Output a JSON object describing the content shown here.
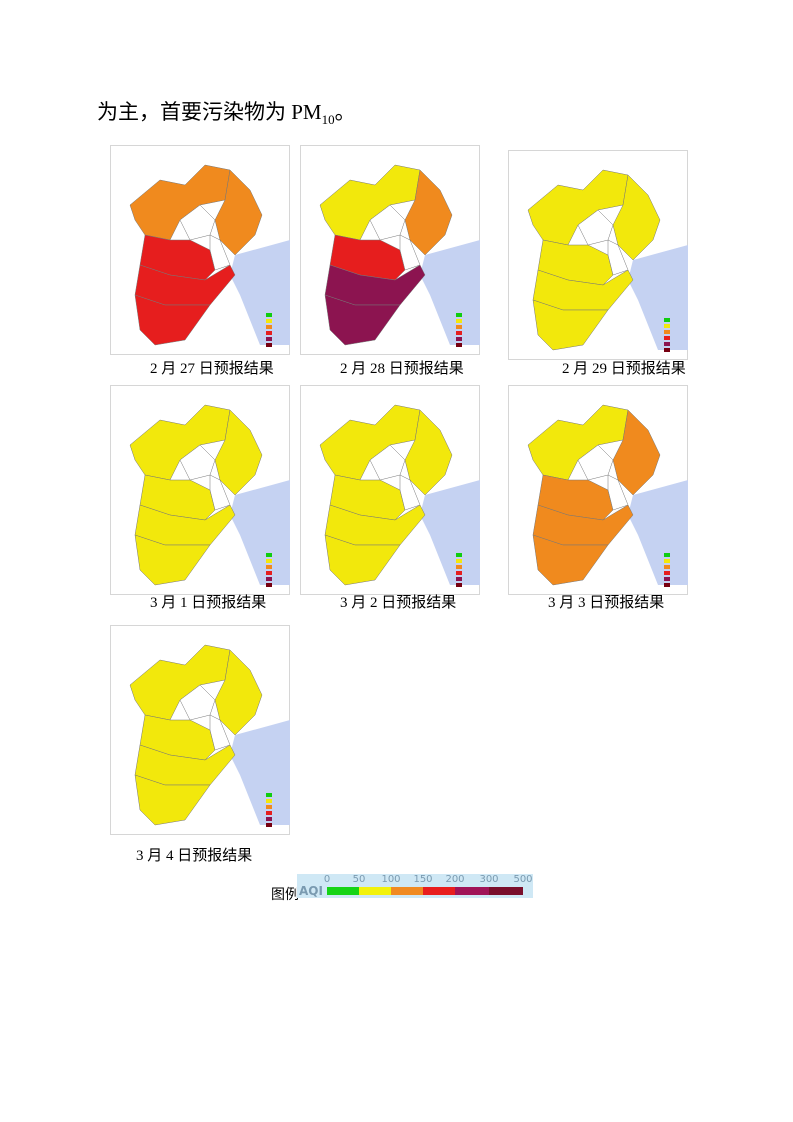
{
  "body": {
    "text": "为主，首要污染物为 PM",
    "subscript": "10",
    "text_end": "。"
  },
  "figures": [
    {
      "caption": "2 月 27 日预报结果"
    },
    {
      "caption": "2 月 28 日预报结果"
    },
    {
      "caption": "2 月 29 日预报结果"
    },
    {
      "caption": "3 月 1 日预报结果"
    },
    {
      "caption": "3 月 2 日预报结果"
    },
    {
      "caption": "3 月 3 日预报结果"
    },
    {
      "caption": "3 月 4 日预报结果"
    }
  ],
  "legend": {
    "label": "图例",
    "axis_title": "AQI",
    "ticks": [
      0,
      50,
      100,
      150,
      200,
      300,
      500
    ],
    "colors": [
      "#16d416",
      "#f2f20c",
      "#f08a22",
      "#e81e1e",
      "#a01458",
      "#7a0f2c"
    ]
  }
}
